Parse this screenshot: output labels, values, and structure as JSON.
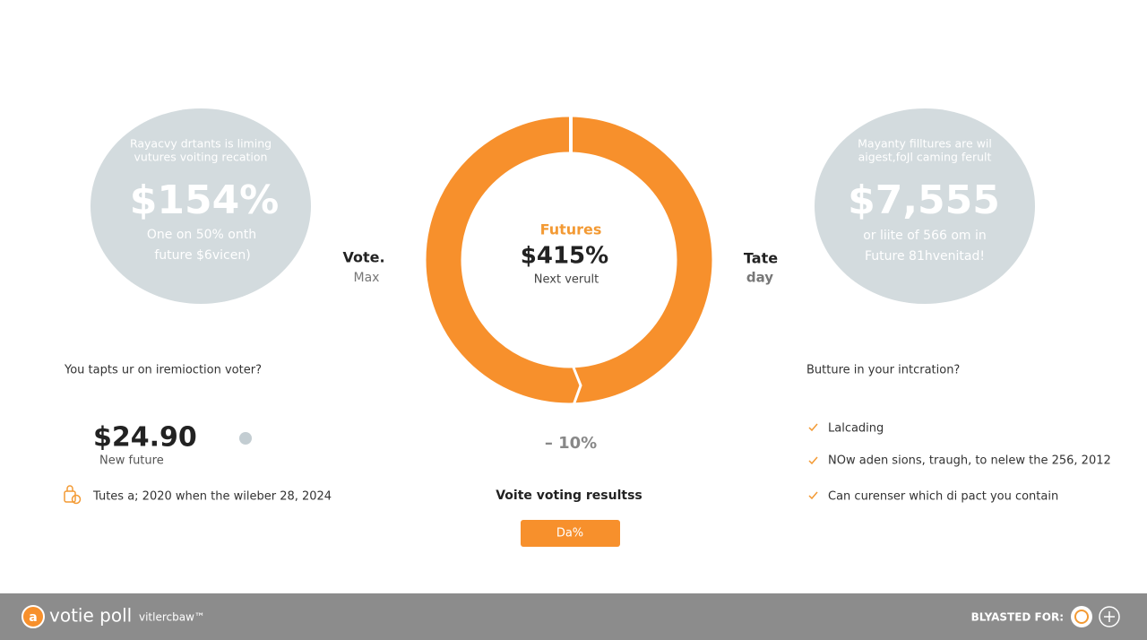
{
  "left_card": {
    "lines": [
      "Rayacvy drtants is liming",
      "vutures voiting recation"
    ],
    "value": "$154%",
    "sub_lines": [
      "One on 50% onth",
      "future $6vicen)"
    ]
  },
  "left_label": {
    "title": "Vote.",
    "sub": "Max"
  },
  "center": {
    "label": "Futures",
    "value": "$415%",
    "sub": "Next verult"
  },
  "right_label": {
    "title": "Tate",
    "sub": "day"
  },
  "right_card": {
    "lines": [
      "Mayanty filltures are wil",
      "aigest,foJl caming ferult"
    ],
    "value": "$7,555",
    "sub_lines": [
      "or liite of 566 om in",
      "Future 81hvenitad!"
    ]
  },
  "left_panel": {
    "question": "You tapts ur  on iremioction voter?",
    "price": "$24.90",
    "price_label": "New future",
    "note": "Tutes a; 2020 when the wileber 28, 2024"
  },
  "center_panel": {
    "change": "– 10%",
    "title": "Voite voting resultss",
    "button": "Da%"
  },
  "right_panel": {
    "question": "Butture in your intcration?",
    "items": [
      "Lalcading",
      "NOw aden sions, traugh, to nelew the 256, 2012",
      "Can curenser which di pact you contain"
    ]
  },
  "footer": {
    "brand": "votie poll",
    "tagline": "vitlercbaw™",
    "right": "BLYASTED FOR:"
  }
}
